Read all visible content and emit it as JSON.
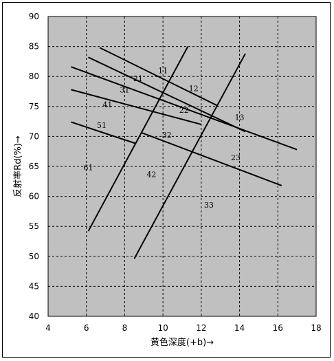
{
  "chart_data": {
    "type": "line",
    "title": "",
    "xlabel": "黄色深度(+b)→",
    "ylabel": "反射率Rd(%)→",
    "xlim": [
      4,
      18
    ],
    "ylim": [
      40,
      90
    ],
    "xticks": [
      4,
      6,
      8,
      10,
      12,
      14,
      16,
      18
    ],
    "yticks": [
      40,
      45,
      50,
      55,
      60,
      65,
      70,
      75,
      80,
      85,
      90
    ],
    "grid": true,
    "background_color": "#c0c0c0",
    "line_color": "#000000",
    "series": [
      {
        "points": [
          [
            6.7,
            84.8
          ],
          [
            12.8,
            75.2
          ]
        ]
      },
      {
        "points": [
          [
            6.1,
            83.2
          ],
          [
            14.3,
            70.8
          ]
        ]
      },
      {
        "points": [
          [
            5.2,
            81.6
          ],
          [
            17.0,
            67.8
          ]
        ]
      },
      {
        "points": [
          [
            5.2,
            77.8
          ],
          [
            12.0,
            72.0
          ]
        ]
      },
      {
        "points": [
          [
            5.2,
            72.4
          ],
          [
            8.6,
            68.8
          ]
        ]
      },
      {
        "points": [
          [
            8.9,
            70.6
          ],
          [
            16.2,
            61.8
          ]
        ]
      },
      {
        "points": [
          [
            6.1,
            54.2
          ],
          [
            11.3,
            85.0
          ]
        ]
      },
      {
        "points": [
          [
            8.5,
            49.6
          ],
          [
            14.3,
            83.8
          ]
        ]
      }
    ],
    "annotations": [
      {
        "text": "11",
        "x": 10.0,
        "y": 81.0
      },
      {
        "text": "21",
        "x": 8.7,
        "y": 79.7
      },
      {
        "text": "12",
        "x": 11.6,
        "y": 78.0
      },
      {
        "text": "31",
        "x": 8.0,
        "y": 77.8
      },
      {
        "text": "41",
        "x": 7.1,
        "y": 75.3
      },
      {
        "text": "22",
        "x": 11.1,
        "y": 74.4
      },
      {
        "text": "13",
        "x": 14.0,
        "y": 73.2
      },
      {
        "text": "51",
        "x": 6.8,
        "y": 71.9
      },
      {
        "text": "32",
        "x": 10.2,
        "y": 70.3
      },
      {
        "text": "23",
        "x": 13.8,
        "y": 66.5
      },
      {
        "text": "61",
        "x": 6.1,
        "y": 64.8
      },
      {
        "text": "42",
        "x": 9.4,
        "y": 63.7
      },
      {
        "text": "33",
        "x": 12.4,
        "y": 58.6
      }
    ]
  }
}
